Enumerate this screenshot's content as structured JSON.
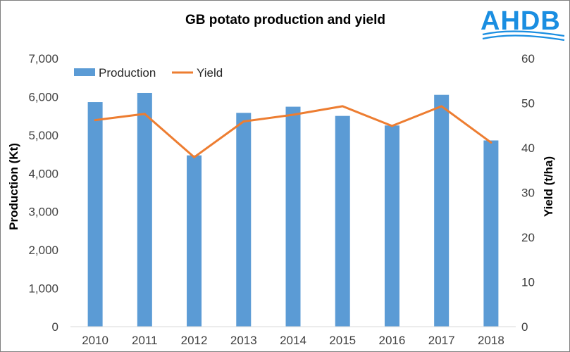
{
  "chart_data": {
    "type": "bar",
    "title": "GB potato production and yield",
    "categories": [
      "2010",
      "2011",
      "2012",
      "2013",
      "2014",
      "2015",
      "2016",
      "2017",
      "2018"
    ],
    "series": [
      {
        "name": "Production",
        "type": "bar",
        "axis": "left",
        "color": "#5b9bd5",
        "values": [
          5860,
          6100,
          4470,
          5580,
          5740,
          5500,
          5250,
          6050,
          4860
        ]
      },
      {
        "name": "Yield",
        "type": "line",
        "axis": "right",
        "color": "#ed7d31",
        "values": [
          46.2,
          47.6,
          37.9,
          45.9,
          47.4,
          49.3,
          44.9,
          49.3,
          41.2
        ]
      }
    ],
    "ylabel": "Production (Kt)",
    "ylim": [
      0,
      7000
    ],
    "yticks": [
      "0",
      "1,000",
      "2,000",
      "3,000",
      "4,000",
      "5,000",
      "6,000",
      "7,000"
    ],
    "y2label": "Yield (t/ha)",
    "y2lim": [
      0,
      60
    ],
    "y2ticks": [
      "0",
      "10",
      "20",
      "30",
      "40",
      "50",
      "60"
    ],
    "legend_position": "top-left",
    "grid": false
  },
  "logo": {
    "text": "AHDB",
    "color": "#1a8ee1"
  }
}
